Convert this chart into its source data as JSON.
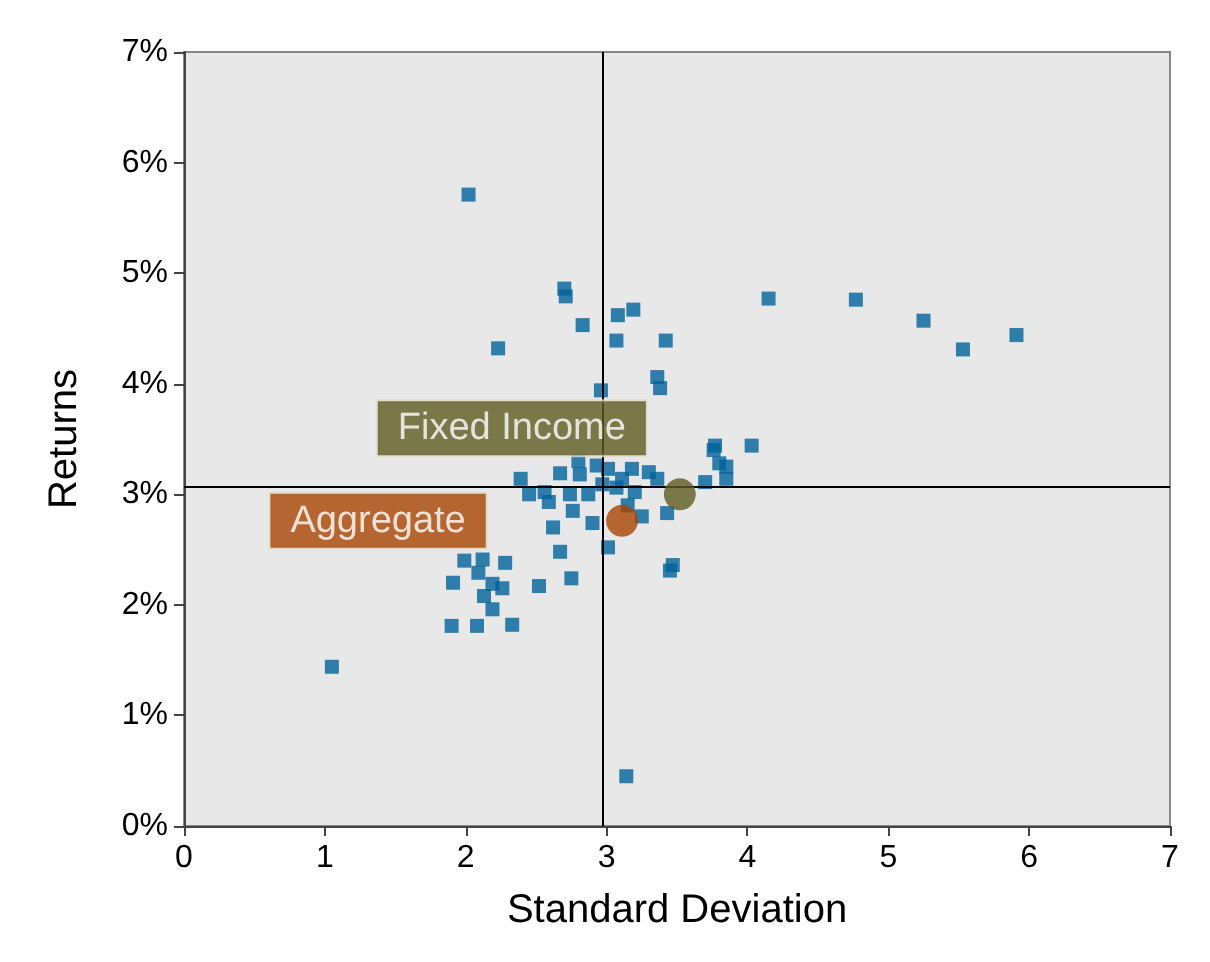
{
  "chart_data": {
    "type": "scatter",
    "xlabel": "Standard Deviation",
    "ylabel": "Returns",
    "xlim": [
      0,
      7
    ],
    "xticks": [
      0,
      1,
      2,
      3,
      4,
      5,
      6,
      7
    ],
    "ylim": [
      0,
      7
    ],
    "yticks": [
      {
        "value": 0,
        "label": "0%"
      },
      {
        "value": 1,
        "label": "1%"
      },
      {
        "value": 2,
        "label": "2%"
      },
      {
        "value": 3,
        "label": "3%"
      },
      {
        "value": 4,
        "label": "4%"
      },
      {
        "value": 5,
        "label": "5%"
      },
      {
        "value": 6,
        "label": "6%"
      },
      {
        "value": 7,
        "label": "7%"
      }
    ],
    "grid": false,
    "legend": false,
    "marker": "square",
    "ref_lines": [
      {
        "axis": "x",
        "value": 2.97,
        "color": "#000000"
      },
      {
        "axis": "y",
        "value": 3.07,
        "color": "#000000"
      }
    ],
    "series": [
      {
        "color": "#00629b",
        "x": [
          2.02,
          2.7,
          2.71,
          2.23,
          2.83,
          3.08,
          3.19,
          3.42,
          3.07,
          2.96,
          3.36,
          3.38,
          4.15,
          4.77,
          5.25,
          5.53,
          5.91,
          1.05,
          3.14,
          3.77,
          3.76,
          4.03,
          3.8,
          3.85,
          3.85,
          3.7,
          3.47,
          3.45,
          1.99,
          2.12,
          2.09,
          2.28,
          1.91,
          2.19,
          2.26,
          2.13,
          2.19,
          2.52,
          2.75,
          1.9,
          2.08,
          2.33,
          3.01,
          2.39,
          2.67,
          2.81,
          2.93,
          3.01,
          3.18,
          3.36,
          2.87,
          3.07,
          3.2,
          2.76,
          2.9,
          3.25,
          3.43,
          2.67,
          2.74,
          2.56,
          2.59,
          2.97,
          3.11,
          2.45,
          2.62,
          3.3,
          2.8,
          3.15
        ],
        "values": [
          5.71,
          4.86,
          4.79,
          4.32,
          4.53,
          4.62,
          4.67,
          4.39,
          4.39,
          3.94,
          4.06,
          3.96,
          4.77,
          4.76,
          4.57,
          4.31,
          4.44,
          1.44,
          0.45,
          3.44,
          3.4,
          3.44,
          3.28,
          3.25,
          3.14,
          3.11,
          2.36,
          2.31,
          2.4,
          2.41,
          2.29,
          2.38,
          2.2,
          2.19,
          2.15,
          2.08,
          1.96,
          2.17,
          2.24,
          1.81,
          1.81,
          1.82,
          2.52,
          3.14,
          3.19,
          3.18,
          3.26,
          3.23,
          3.23,
          3.14,
          3.0,
          3.06,
          3.02,
          2.85,
          2.74,
          2.8,
          2.83,
          2.48,
          3.0,
          3.02,
          2.93,
          3.09,
          3.14,
          3.0,
          2.7,
          3.2,
          3.3,
          2.9
        ]
      },
      {
        "name": "Fixed Income",
        "color": "#5e5a20",
        "marker": "circle",
        "x": [
          3.52
        ],
        "values": [
          3.0
        ]
      },
      {
        "name": "Aggregate",
        "color": "#a84300",
        "marker": "circle",
        "x": [
          3.11
        ],
        "values": [
          2.76
        ]
      }
    ]
  }
}
